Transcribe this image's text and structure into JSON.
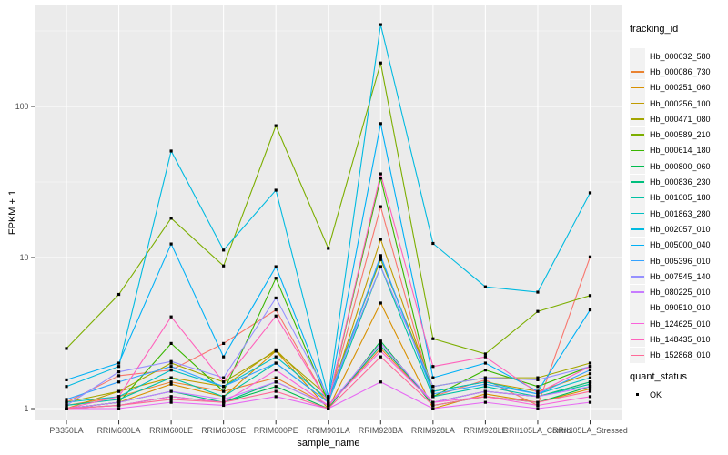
{
  "chart_data": {
    "type": "line",
    "title": "",
    "xlabel": "sample_name",
    "ylabel": "FPKM + 1",
    "y_scale": "log10",
    "y_ticks": [
      1,
      10,
      100
    ],
    "y_tick_labels": [
      "1",
      "10",
      "100"
    ],
    "y_minor_ticks": [
      3.162,
      31.62,
      316.2
    ],
    "ylim": [
      0.93,
      470
    ],
    "grid": "on",
    "legend_position": "right",
    "categories": [
      "PB350LA",
      "RRIM600LA",
      "RRIM600LE",
      "RRIM600SE",
      "RRIM600PE",
      "RRIM901LA",
      "RRIM928BA",
      "RRIM928LA",
      "RRIM928LE",
      "RRII105LA_Control",
      "RRII105LA_Stressed"
    ],
    "series": [
      {
        "name": "Hb_000032_580",
        "color": "#F8766D",
        "values": [
          1.1,
          1.65,
          1.8,
          2.7,
          4.5,
          1.1,
          21.7,
          1.2,
          1.55,
          1.05,
          10.1
        ]
      },
      {
        "name": "Hb_000086_730",
        "color": "#EA8331",
        "values": [
          1.05,
          1.2,
          1.5,
          1.3,
          1.6,
          1.05,
          2.5,
          1.1,
          1.3,
          1.2,
          1.5
        ]
      },
      {
        "name": "Hb_000251_060",
        "color": "#D89000",
        "values": [
          1.0,
          1.1,
          1.45,
          1.2,
          2.4,
          1.0,
          5.0,
          1.0,
          1.25,
          1.1,
          1.35
        ]
      },
      {
        "name": "Hb_000256_100",
        "color": "#C09B00",
        "values": [
          1.0,
          1.3,
          1.6,
          1.4,
          2.45,
          1.1,
          13.2,
          1.3,
          1.5,
          1.3,
          1.7
        ]
      },
      {
        "name": "Hb_000471_080",
        "color": "#A3A500",
        "values": [
          1.1,
          1.3,
          2.0,
          1.5,
          2.4,
          1.2,
          9.7,
          1.4,
          1.6,
          1.6,
          2.0
        ]
      },
      {
        "name": "Hb_000589_210",
        "color": "#7CAE00",
        "values": [
          2.5,
          5.7,
          18.2,
          8.8,
          74.6,
          11.5,
          194.0,
          2.9,
          2.3,
          4.4,
          5.6
        ]
      },
      {
        "name": "Hb_000614_180",
        "color": "#39B600",
        "values": [
          1.0,
          1.1,
          2.7,
          1.3,
          7.3,
          1.1,
          33.5,
          1.2,
          1.8,
          1.4,
          1.9
        ]
      },
      {
        "name": "Hb_000800_060",
        "color": "#00BB4E",
        "values": [
          1.0,
          1.05,
          1.2,
          1.1,
          1.4,
          1.0,
          2.8,
          1.05,
          1.2,
          1.1,
          1.4
        ]
      },
      {
        "name": "Hb_000836_230",
        "color": "#00BF7D",
        "values": [
          1.0,
          1.1,
          1.3,
          1.1,
          1.5,
          1.05,
          2.6,
          1.1,
          1.3,
          1.2,
          1.5
        ]
      },
      {
        "name": "Hb_001005_180",
        "color": "#00C1A3",
        "values": [
          1.05,
          1.15,
          1.6,
          1.2,
          2.0,
          1.1,
          8.7,
          1.2,
          1.4,
          1.2,
          1.45
        ]
      },
      {
        "name": "Hb_001863_280",
        "color": "#00BFC4",
        "values": [
          1.1,
          1.2,
          1.8,
          1.4,
          2.2,
          1.15,
          10.1,
          1.3,
          1.5,
          1.25,
          1.6
        ]
      },
      {
        "name": "Hb_002057_010",
        "color": "#00BAE0",
        "values": [
          1.4,
          1.9,
          50.7,
          11.2,
          27.9,
          1.2,
          348.0,
          12.4,
          6.4,
          5.9,
          26.8
        ]
      },
      {
        "name": "Hb_005000_040",
        "color": "#00B0F6",
        "values": [
          1.55,
          2.0,
          12.3,
          2.2,
          8.7,
          1.15,
          77.0,
          1.6,
          2.0,
          1.3,
          4.5
        ]
      },
      {
        "name": "Hb_005396_010",
        "color": "#35A2FF",
        "values": [
          1.15,
          1.5,
          1.9,
          1.4,
          2.0,
          1.1,
          10.3,
          1.25,
          1.45,
          1.25,
          1.8
        ]
      },
      {
        "name": "Hb_007545_140",
        "color": "#9590FF",
        "values": [
          1.05,
          1.75,
          2.05,
          1.6,
          5.4,
          1.2,
          8.7,
          1.4,
          1.6,
          1.55,
          1.9
        ]
      },
      {
        "name": "Hb_080225_010",
        "color": "#C77CFF",
        "values": [
          1.0,
          1.1,
          1.3,
          1.15,
          1.5,
          1.05,
          2.7,
          1.1,
          1.3,
          1.2,
          1.4
        ]
      },
      {
        "name": "Hb_090510_010",
        "color": "#E76BF3",
        "values": [
          1.0,
          1.0,
          1.1,
          1.05,
          1.2,
          1.0,
          1.5,
          1.0,
          1.1,
          1.0,
          1.1
        ]
      },
      {
        "name": "Hb_124625_010",
        "color": "#FA62DB",
        "values": [
          1.0,
          1.05,
          1.2,
          1.1,
          1.8,
          1.05,
          2.4,
          1.1,
          1.2,
          1.05,
          1.2
        ]
      },
      {
        "name": "Hb_148435_010",
        "color": "#FF62BC",
        "values": [
          1.0,
          1.2,
          4.05,
          1.5,
          4.1,
          1.1,
          35.8,
          1.9,
          2.2,
          1.27,
          1.9
        ]
      },
      {
        "name": "Hb_152868_010",
        "color": "#FF6A98",
        "values": [
          1.0,
          1.05,
          1.15,
          1.1,
          1.3,
          1.0,
          2.2,
          1.05,
          1.2,
          1.1,
          1.3
        ]
      }
    ],
    "legend": {
      "color_title": "tracking_id",
      "shape_title": "quant_status",
      "shape_items": [
        {
          "label": "OK",
          "shape": "square",
          "color": "#000000"
        }
      ]
    },
    "point": {
      "shape": "square",
      "color": "#000000"
    }
  },
  "theme": {
    "panel_bg": "#EBEBEB",
    "grid_major": "#FFFFFF",
    "grid_minor": "#FFFFFF",
    "tick_color": "#333333",
    "tick_label_color": "#4D4D4D",
    "axis_title_color": "#000000",
    "legend_key_bg": "#F2F2F2"
  }
}
